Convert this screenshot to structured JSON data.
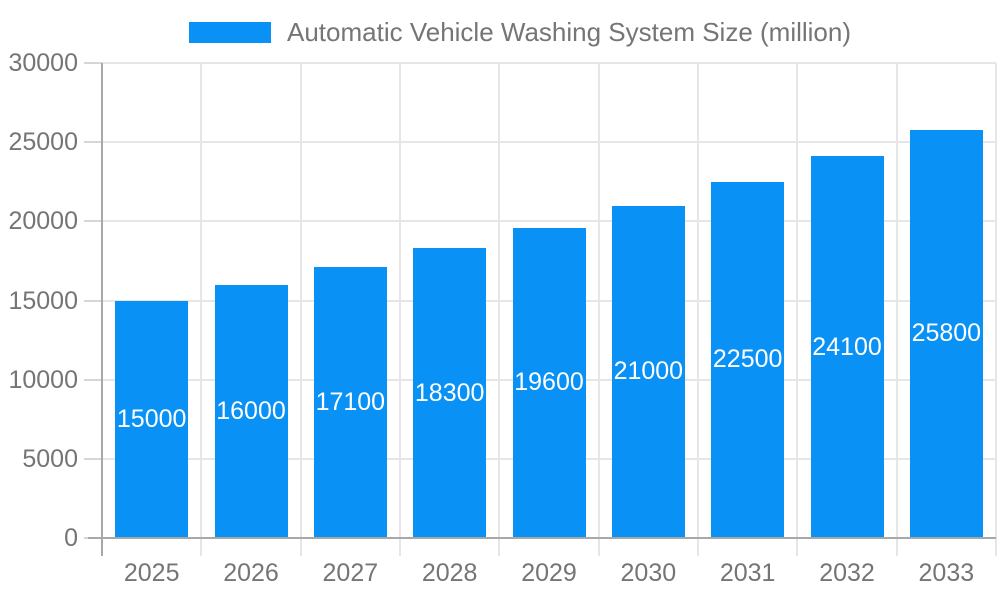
{
  "chart_data": {
    "type": "bar",
    "title": "Automatic Vehicle Washing System Size (million)",
    "legend": [
      "Automatic Vehicle Washing System Size (million)"
    ],
    "legend_position": "top",
    "categories": [
      "2025",
      "2026",
      "2027",
      "2028",
      "2029",
      "2030",
      "2031",
      "2032",
      "2033"
    ],
    "values": [
      15000,
      16000,
      17100,
      18300,
      19600,
      21000,
      22500,
      24100,
      25800
    ],
    "bar_value_labels": [
      "15000",
      "16000",
      "17100",
      "18300",
      "19600",
      "21000",
      "22500",
      "24100",
      "25800"
    ],
    "xlabel": "",
    "ylabel": "",
    "ylim": [
      0,
      30000
    ],
    "yticks": [
      0,
      5000,
      10000,
      15000,
      20000,
      25000,
      30000
    ],
    "ytick_labels": [
      "0",
      "5000",
      "10000",
      "15000",
      "20000",
      "25000",
      "30000"
    ],
    "grid": true,
    "colors": {
      "bar": "#0991f5",
      "bar_label": "#ffffff",
      "axis_text": "#757575",
      "grid_line": "#e6e6e6",
      "axis_line": "#a8a8a8",
      "tick_line": "#d6d6d6",
      "background": "#ffffff"
    }
  }
}
